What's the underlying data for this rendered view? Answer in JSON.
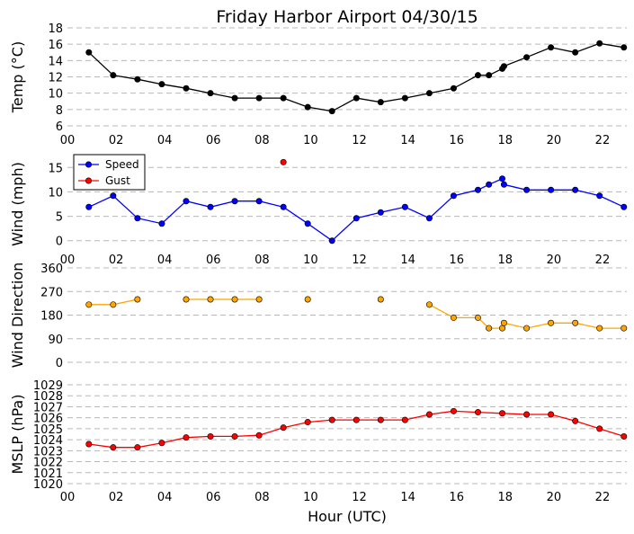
{
  "chart_data": [
    {
      "type": "line",
      "title": "Friday Harbor Airport 04/30/15",
      "ylabel": "Temp ($^\\circ$C)",
      "ylabel_display": "Temp (°C)",
      "xlim": [
        0,
        23
      ],
      "ylim": [
        6,
        18
      ],
      "yticks": [
        6,
        8,
        10,
        12,
        14,
        16,
        18
      ],
      "xtick_labels": [
        "00",
        "02",
        "04",
        "06",
        "08",
        "10",
        "12",
        "14",
        "16",
        "18",
        "20",
        "22"
      ],
      "grid": true,
      "series": [
        {
          "color": "#000000",
          "line": true,
          "x": [
            0.88,
            1.88,
            2.88,
            3.88,
            4.88,
            5.88,
            6.88,
            7.88,
            8.88,
            9.88,
            10.88,
            11.88,
            12.88,
            13.88,
            14.88,
            15.88,
            16.88,
            17.33,
            17.88,
            17.95,
            18.88,
            19.88,
            20.88,
            21.88,
            22.88
          ],
          "y": [
            15.0,
            12.2,
            11.7,
            11.1,
            10.6,
            10.0,
            9.4,
            9.4,
            9.4,
            8.3,
            7.8,
            9.4,
            8.9,
            9.4,
            10.0,
            10.6,
            12.2,
            12.2,
            13.0,
            13.3,
            14.4,
            15.6,
            15.0,
            16.1,
            15.6
          ]
        }
      ]
    },
    {
      "type": "line",
      "ylabel": "Wind (mph)",
      "xlim": [
        0,
        23
      ],
      "ylim": [
        -3,
        18
      ],
      "yticks": [
        0,
        5,
        10,
        15
      ],
      "xtick_labels": [
        "00",
        "02",
        "04",
        "06",
        "08",
        "10",
        "12",
        "14",
        "16",
        "18",
        "20",
        "22"
      ],
      "grid": true,
      "legend": {
        "placement": "top-left"
      },
      "series": [
        {
          "name": "Speed",
          "color": "#0000ff",
          "line": true,
          "x": [
            0.88,
            1.88,
            2.88,
            3.88,
            4.88,
            5.88,
            6.88,
            7.88,
            8.88,
            9.88,
            10.88,
            11.88,
            12.88,
            13.88,
            14.88,
            15.88,
            16.88,
            17.33,
            17.88,
            17.95,
            18.88,
            19.88,
            20.88,
            21.88,
            22.88
          ],
          "y": [
            6.9,
            9.2,
            4.6,
            3.5,
            8.1,
            6.9,
            8.1,
            8.1,
            6.9,
            3.5,
            0.0,
            4.6,
            5.8,
            6.9,
            4.6,
            9.2,
            10.4,
            11.5,
            12.7,
            11.5,
            10.4,
            10.4,
            10.4,
            9.2,
            6.9
          ]
        },
        {
          "name": "Gust",
          "color": "#ff0000",
          "line": true,
          "x": [
            8.88
          ],
          "y": [
            16.1
          ]
        }
      ]
    },
    {
      "type": "line",
      "ylabel": "Wind Direction",
      "xlim": [
        0,
        23
      ],
      "ylim": [
        0,
        360
      ],
      "yticks": [
        0,
        90,
        180,
        270,
        360
      ],
      "xtick_labels": [],
      "grid": true,
      "series": [
        {
          "color": "#ffa500",
          "line": true,
          "segments": [
            {
              "x": [
                0.88,
                1.88,
                2.88
              ],
              "y": [
                220,
                220,
                240
              ]
            },
            {
              "x": [
                4.88,
                5.88,
                6.88,
                7.88
              ],
              "y": [
                240,
                240,
                240,
                240
              ]
            },
            {
              "x": [
                9.88
              ],
              "y": [
                240
              ]
            },
            {
              "x": [
                12.88
              ],
              "y": [
                240
              ]
            },
            {
              "x": [
                14.88,
                15.88,
                16.88,
                17.33,
                17.88,
                17.95,
                18.88,
                19.88,
                20.88,
                21.88,
                22.88
              ],
              "y": [
                220,
                170,
                170,
                130,
                130,
                150,
                130,
                150,
                150,
                130,
                130
              ]
            }
          ]
        }
      ]
    },
    {
      "type": "line",
      "ylabel": "MSLP (hPa)",
      "xlabel": "Hour (UTC)",
      "xlim": [
        0,
        23
      ],
      "ylim": [
        1020,
        1029
      ],
      "yticks": [
        1020,
        1021,
        1022,
        1023,
        1024,
        1025,
        1026,
        1027,
        1028,
        1029
      ],
      "xtick_labels": [
        "00",
        "02",
        "04",
        "06",
        "08",
        "10",
        "12",
        "14",
        "16",
        "18",
        "20",
        "22"
      ],
      "grid": true,
      "series": [
        {
          "color": "#ff0000",
          "line": true,
          "x": [
            0.88,
            1.88,
            2.88,
            3.88,
            4.88,
            5.88,
            6.88,
            7.88,
            8.88,
            9.88,
            10.88,
            11.88,
            12.88,
            13.88,
            14.88,
            15.88,
            16.88,
            17.88,
            18.88,
            19.88,
            20.88,
            21.88,
            22.88
          ],
          "y": [
            1023.6,
            1023.3,
            1023.3,
            1023.7,
            1024.2,
            1024.3,
            1024.3,
            1024.4,
            1025.1,
            1025.6,
            1025.8,
            1025.8,
            1025.8,
            1025.8,
            1026.3,
            1026.6,
            1026.5,
            1026.4,
            1026.3,
            1026.3,
            1025.7,
            1025.0,
            1024.3
          ]
        }
      ]
    }
  ]
}
